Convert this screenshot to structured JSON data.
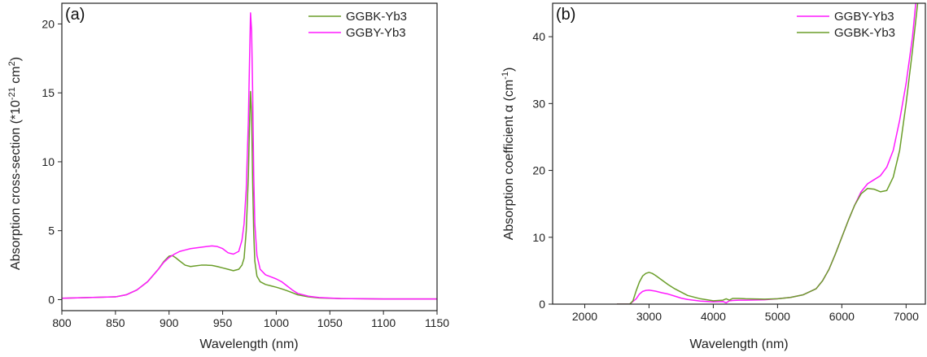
{
  "chart_data": [
    {
      "type": "line",
      "panel_label": "(a)",
      "xlabel": "Wavelength (nm)",
      "ylabel": "Absorption cross-section (*10",
      "ylabel_exp1": "-21",
      "ylabel_mid": " cm",
      "ylabel_exp2": "2",
      "ylabel_end": ")",
      "xlim": [
        800,
        1150
      ],
      "ylim": [
        -0.8,
        21.5
      ],
      "x_ticks": [
        800,
        850,
        900,
        950,
        1000,
        1050,
        1100,
        1150
      ],
      "y_ticks": [
        0,
        5,
        10,
        15,
        20
      ],
      "legend_position": "top-right",
      "series": [
        {
          "name": "GGBK-Yb3",
          "color": "#6b9e2a",
          "x": [
            800,
            850,
            860,
            870,
            880,
            890,
            895,
            900,
            903,
            906,
            910,
            915,
            920,
            925,
            930,
            935,
            940,
            945,
            950,
            955,
            960,
            965,
            968,
            970,
            972,
            974,
            975,
            976,
            977,
            978,
            979,
            980,
            982,
            985,
            990,
            995,
            1000,
            1005,
            1010,
            1015,
            1020,
            1030,
            1040,
            1060,
            1080,
            1100,
            1150
          ],
          "y": [
            0.1,
            0.2,
            0.35,
            0.7,
            1.3,
            2.2,
            2.75,
            3.15,
            3.2,
            3.05,
            2.8,
            2.5,
            2.4,
            2.45,
            2.5,
            2.5,
            2.48,
            2.4,
            2.3,
            2.2,
            2.1,
            2.2,
            2.5,
            3.0,
            5.0,
            9.0,
            12.5,
            15.1,
            13.5,
            8.5,
            4.8,
            2.8,
            1.7,
            1.3,
            1.1,
            1.0,
            0.9,
            0.78,
            0.65,
            0.5,
            0.35,
            0.2,
            0.12,
            0.08,
            0.06,
            0.05,
            0.05
          ]
        },
        {
          "name": "GGBY-Yb3",
          "color": "#ff1aff",
          "x": [
            800,
            850,
            860,
            870,
            880,
            890,
            895,
            900,
            905,
            910,
            915,
            920,
            930,
            940,
            945,
            950,
            955,
            960,
            965,
            968,
            970,
            972,
            974,
            975,
            976,
            977,
            978,
            979,
            980,
            982,
            985,
            990,
            995,
            1000,
            1005,
            1010,
            1015,
            1020,
            1030,
            1040,
            1060,
            1080,
            1100,
            1150
          ],
          "y": [
            0.1,
            0.2,
            0.35,
            0.7,
            1.3,
            2.2,
            2.7,
            3.05,
            3.3,
            3.5,
            3.6,
            3.7,
            3.8,
            3.9,
            3.85,
            3.7,
            3.4,
            3.3,
            3.5,
            4.3,
            5.5,
            8.0,
            13.0,
            17.0,
            20.8,
            19.5,
            15.0,
            9.0,
            5.5,
            3.2,
            2.2,
            1.8,
            1.65,
            1.5,
            1.3,
            1.0,
            0.7,
            0.45,
            0.25,
            0.15,
            0.08,
            0.06,
            0.05,
            0.05
          ]
        }
      ]
    },
    {
      "type": "line",
      "panel_label": "(b)",
      "xlabel": "Wavelength (nm)",
      "ylabel": "Absorption coefficient α (cm",
      "ylabel_exp1": "-1",
      "ylabel_end": ")",
      "xlim": [
        1500,
        7300
      ],
      "ylim": [
        0,
        45
      ],
      "x_ticks": [
        2000,
        3000,
        4000,
        5000,
        6000,
        7000
      ],
      "y_ticks": [
        0,
        10,
        20,
        30,
        40
      ],
      "legend_position": "top-right",
      "series": [
        {
          "name": "GGBY-Yb3",
          "color": "#ff1aff",
          "x": [
            2500,
            2700,
            2800,
            2850,
            2900,
            2950,
            3000,
            3100,
            3200,
            3300,
            3400,
            3500,
            3600,
            3800,
            4000,
            4150,
            4200,
            4250,
            4300,
            4400,
            4500,
            4800,
            5000,
            5200,
            5400,
            5600,
            5700,
            5800,
            5900,
            6000,
            6100,
            6200,
            6300,
            6400,
            6500,
            6600,
            6700,
            6800,
            6900,
            7000,
            7100,
            7150
          ],
          "y": [
            0,
            0,
            0.8,
            1.5,
            1.9,
            2.05,
            2.1,
            1.95,
            1.7,
            1.5,
            1.2,
            0.9,
            0.7,
            0.45,
            0.35,
            0.4,
            0.2,
            0.5,
            0.55,
            0.6,
            0.6,
            0.65,
            0.8,
            1.0,
            1.4,
            2.3,
            3.5,
            5.2,
            7.5,
            10.0,
            12.5,
            14.8,
            16.8,
            18.0,
            18.6,
            19.2,
            20.5,
            23.0,
            27.5,
            33.0,
            40.0,
            45.0
          ]
        },
        {
          "name": "GGBK-Yb3",
          "color": "#6b9e2a",
          "x": [
            2500,
            2700,
            2750,
            2800,
            2850,
            2900,
            2950,
            3000,
            3050,
            3100,
            3200,
            3300,
            3400,
            3500,
            3600,
            3800,
            4000,
            4150,
            4200,
            4250,
            4300,
            4400,
            4500,
            4800,
            5000,
            5200,
            5400,
            5600,
            5700,
            5800,
            5900,
            6000,
            6100,
            6200,
            6300,
            6400,
            6500,
            6600,
            6700,
            6800,
            6900,
            7000,
            7100,
            7180
          ],
          "y": [
            0,
            0,
            0.5,
            2.0,
            3.3,
            4.2,
            4.6,
            4.75,
            4.6,
            4.3,
            3.6,
            2.9,
            2.3,
            1.8,
            1.3,
            0.8,
            0.5,
            0.6,
            0.8,
            0.6,
            0.85,
            0.85,
            0.8,
            0.75,
            0.8,
            1.0,
            1.4,
            2.3,
            3.5,
            5.2,
            7.5,
            10.0,
            12.5,
            14.8,
            16.5,
            17.3,
            17.2,
            16.8,
            17.0,
            19.0,
            23.0,
            30.0,
            38.0,
            45.0
          ]
        }
      ]
    }
  ]
}
